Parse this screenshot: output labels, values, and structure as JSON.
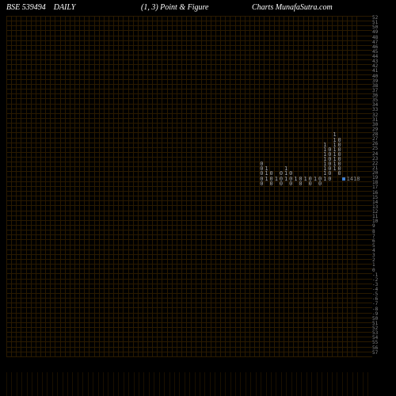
{
  "header": {
    "symbol": "BSE 539494",
    "interval": "DAILY",
    "config": "(1,  3) Point & Figure",
    "source": "Charts MunafaSutra.com"
  },
  "chart": {
    "type": "point-and-figure",
    "background_color": "#000000",
    "grid_color": "#2a1a00",
    "text_color": "#aaaaaa",
    "axis_color": "#888888",
    "marker_color": "#4080d0",
    "grid_rows": 70,
    "grid_cols": 72,
    "cell_size": 6.14,
    "y_axis_labels": [
      "52",
      "51",
      "50",
      "49",
      "48",
      "47",
      "46",
      "45",
      "44",
      "43",
      "42",
      "41",
      "40",
      "39",
      "38",
      "37",
      "36",
      "35",
      "34",
      "33",
      "32",
      "31",
      "30",
      "29",
      "28",
      "27",
      "26",
      "25",
      "24",
      "23",
      "22",
      "21",
      "20",
      "19",
      "18",
      "17",
      "16",
      "15",
      "14",
      "13",
      "12",
      "11",
      "10",
      "9",
      "8",
      "7",
      "6",
      "5",
      "4",
      "3",
      "2",
      "1",
      "0",
      "-1",
      "-2",
      "-3",
      "-4",
      "-5",
      "-6",
      "-7",
      "-8",
      "-9",
      "50",
      "51",
      "52",
      "53",
      "54",
      "55",
      "56",
      "57"
    ],
    "point_figure_data": {
      "columns": [
        {
          "x": 52,
          "type": "O",
          "cells": [
            "",
            "",
            "",
            "",
            "",
            "",
            "0",
            "0",
            "0",
            "0",
            "0"
          ]
        },
        {
          "x": 53,
          "type": "X",
          "cells": [
            "",
            "",
            "",
            "",
            "",
            "",
            "",
            "1",
            "1",
            "1",
            ""
          ]
        },
        {
          "x": 54,
          "type": "O",
          "cells": [
            "",
            "",
            "",
            "",
            "",
            "",
            "",
            "",
            "0",
            "0",
            "0"
          ]
        },
        {
          "x": 55,
          "type": "X",
          "cells": [
            "",
            "",
            "",
            "",
            "",
            "",
            "",
            "",
            "",
            "1",
            ""
          ]
        },
        {
          "x": 56,
          "type": "O",
          "cells": [
            "",
            "",
            "",
            "",
            "",
            "",
            "",
            "",
            "0",
            "0",
            "0"
          ]
        },
        {
          "x": 57,
          "type": "X",
          "cells": [
            "",
            "",
            "",
            "",
            "",
            "",
            "",
            "1",
            "1",
            "1",
            ""
          ]
        },
        {
          "x": 58,
          "type": "O",
          "cells": [
            "",
            "",
            "",
            "",
            "",
            "",
            "",
            "",
            "0",
            "0",
            "0"
          ]
        },
        {
          "x": 59,
          "type": "X",
          "cells": [
            "",
            "",
            "",
            "",
            "",
            "",
            "",
            "",
            "",
            "1",
            ""
          ]
        },
        {
          "x": 60,
          "type": "O",
          "cells": [
            "",
            "",
            "",
            "",
            "",
            "",
            "",
            "",
            "",
            "0",
            "0"
          ]
        },
        {
          "x": 61,
          "type": "X",
          "cells": [
            "",
            "",
            "",
            "",
            "",
            "",
            "",
            "",
            "",
            "1",
            ""
          ]
        },
        {
          "x": 62,
          "type": "O",
          "cells": [
            "",
            "",
            "",
            "",
            "",
            "",
            "",
            "",
            "",
            "0",
            "0"
          ]
        },
        {
          "x": 63,
          "type": "X",
          "cells": [
            "",
            "",
            "",
            "",
            "",
            "",
            "",
            "",
            "",
            "1",
            ""
          ]
        },
        {
          "x": 64,
          "type": "O",
          "cells": [
            "",
            "",
            "",
            "",
            "",
            "",
            "",
            "",
            "",
            "0",
            "0"
          ]
        },
        {
          "x": 65,
          "type": "X",
          "cells": [
            "",
            "",
            "1",
            "1",
            "1",
            "1",
            "1",
            "1",
            "1",
            "1",
            ""
          ]
        },
        {
          "x": 66,
          "type": "O",
          "cells": [
            "",
            "",
            "",
            "0",
            "0",
            "0",
            "0",
            "0",
            "0",
            "0",
            ""
          ]
        },
        {
          "x": 67,
          "type": "X",
          "cells": [
            "1",
            "1",
            "1",
            "1",
            "1",
            "1",
            "1",
            "1",
            "",
            "",
            ""
          ]
        },
        {
          "x": 68,
          "type": "O",
          "cells": [
            "",
            "0",
            "0",
            "0",
            "0",
            "0",
            "0",
            "0",
            "0",
            "",
            ""
          ]
        }
      ],
      "row_start": 24,
      "current_marker": {
        "col": 69,
        "row": 33,
        "label": "1418"
      }
    },
    "bottom_bars": {
      "count": 72,
      "heights": [
        30,
        30,
        30,
        30,
        30,
        30,
        30,
        30,
        30,
        30,
        30,
        30,
        30,
        30,
        30,
        30,
        30,
        30,
        30,
        30,
        30,
        30,
        30,
        30,
        30,
        30,
        30,
        30,
        30,
        30,
        30,
        30,
        30,
        30,
        30,
        30,
        30,
        30,
        30,
        30,
        30,
        30,
        30,
        30,
        30,
        30,
        30,
        30,
        30,
        30,
        30,
        30,
        30,
        30,
        30,
        30,
        30,
        30,
        30,
        30,
        30,
        30,
        30,
        30,
        30,
        30,
        30,
        30,
        30,
        30,
        30,
        30
      ],
      "color": "#1a1000"
    }
  }
}
